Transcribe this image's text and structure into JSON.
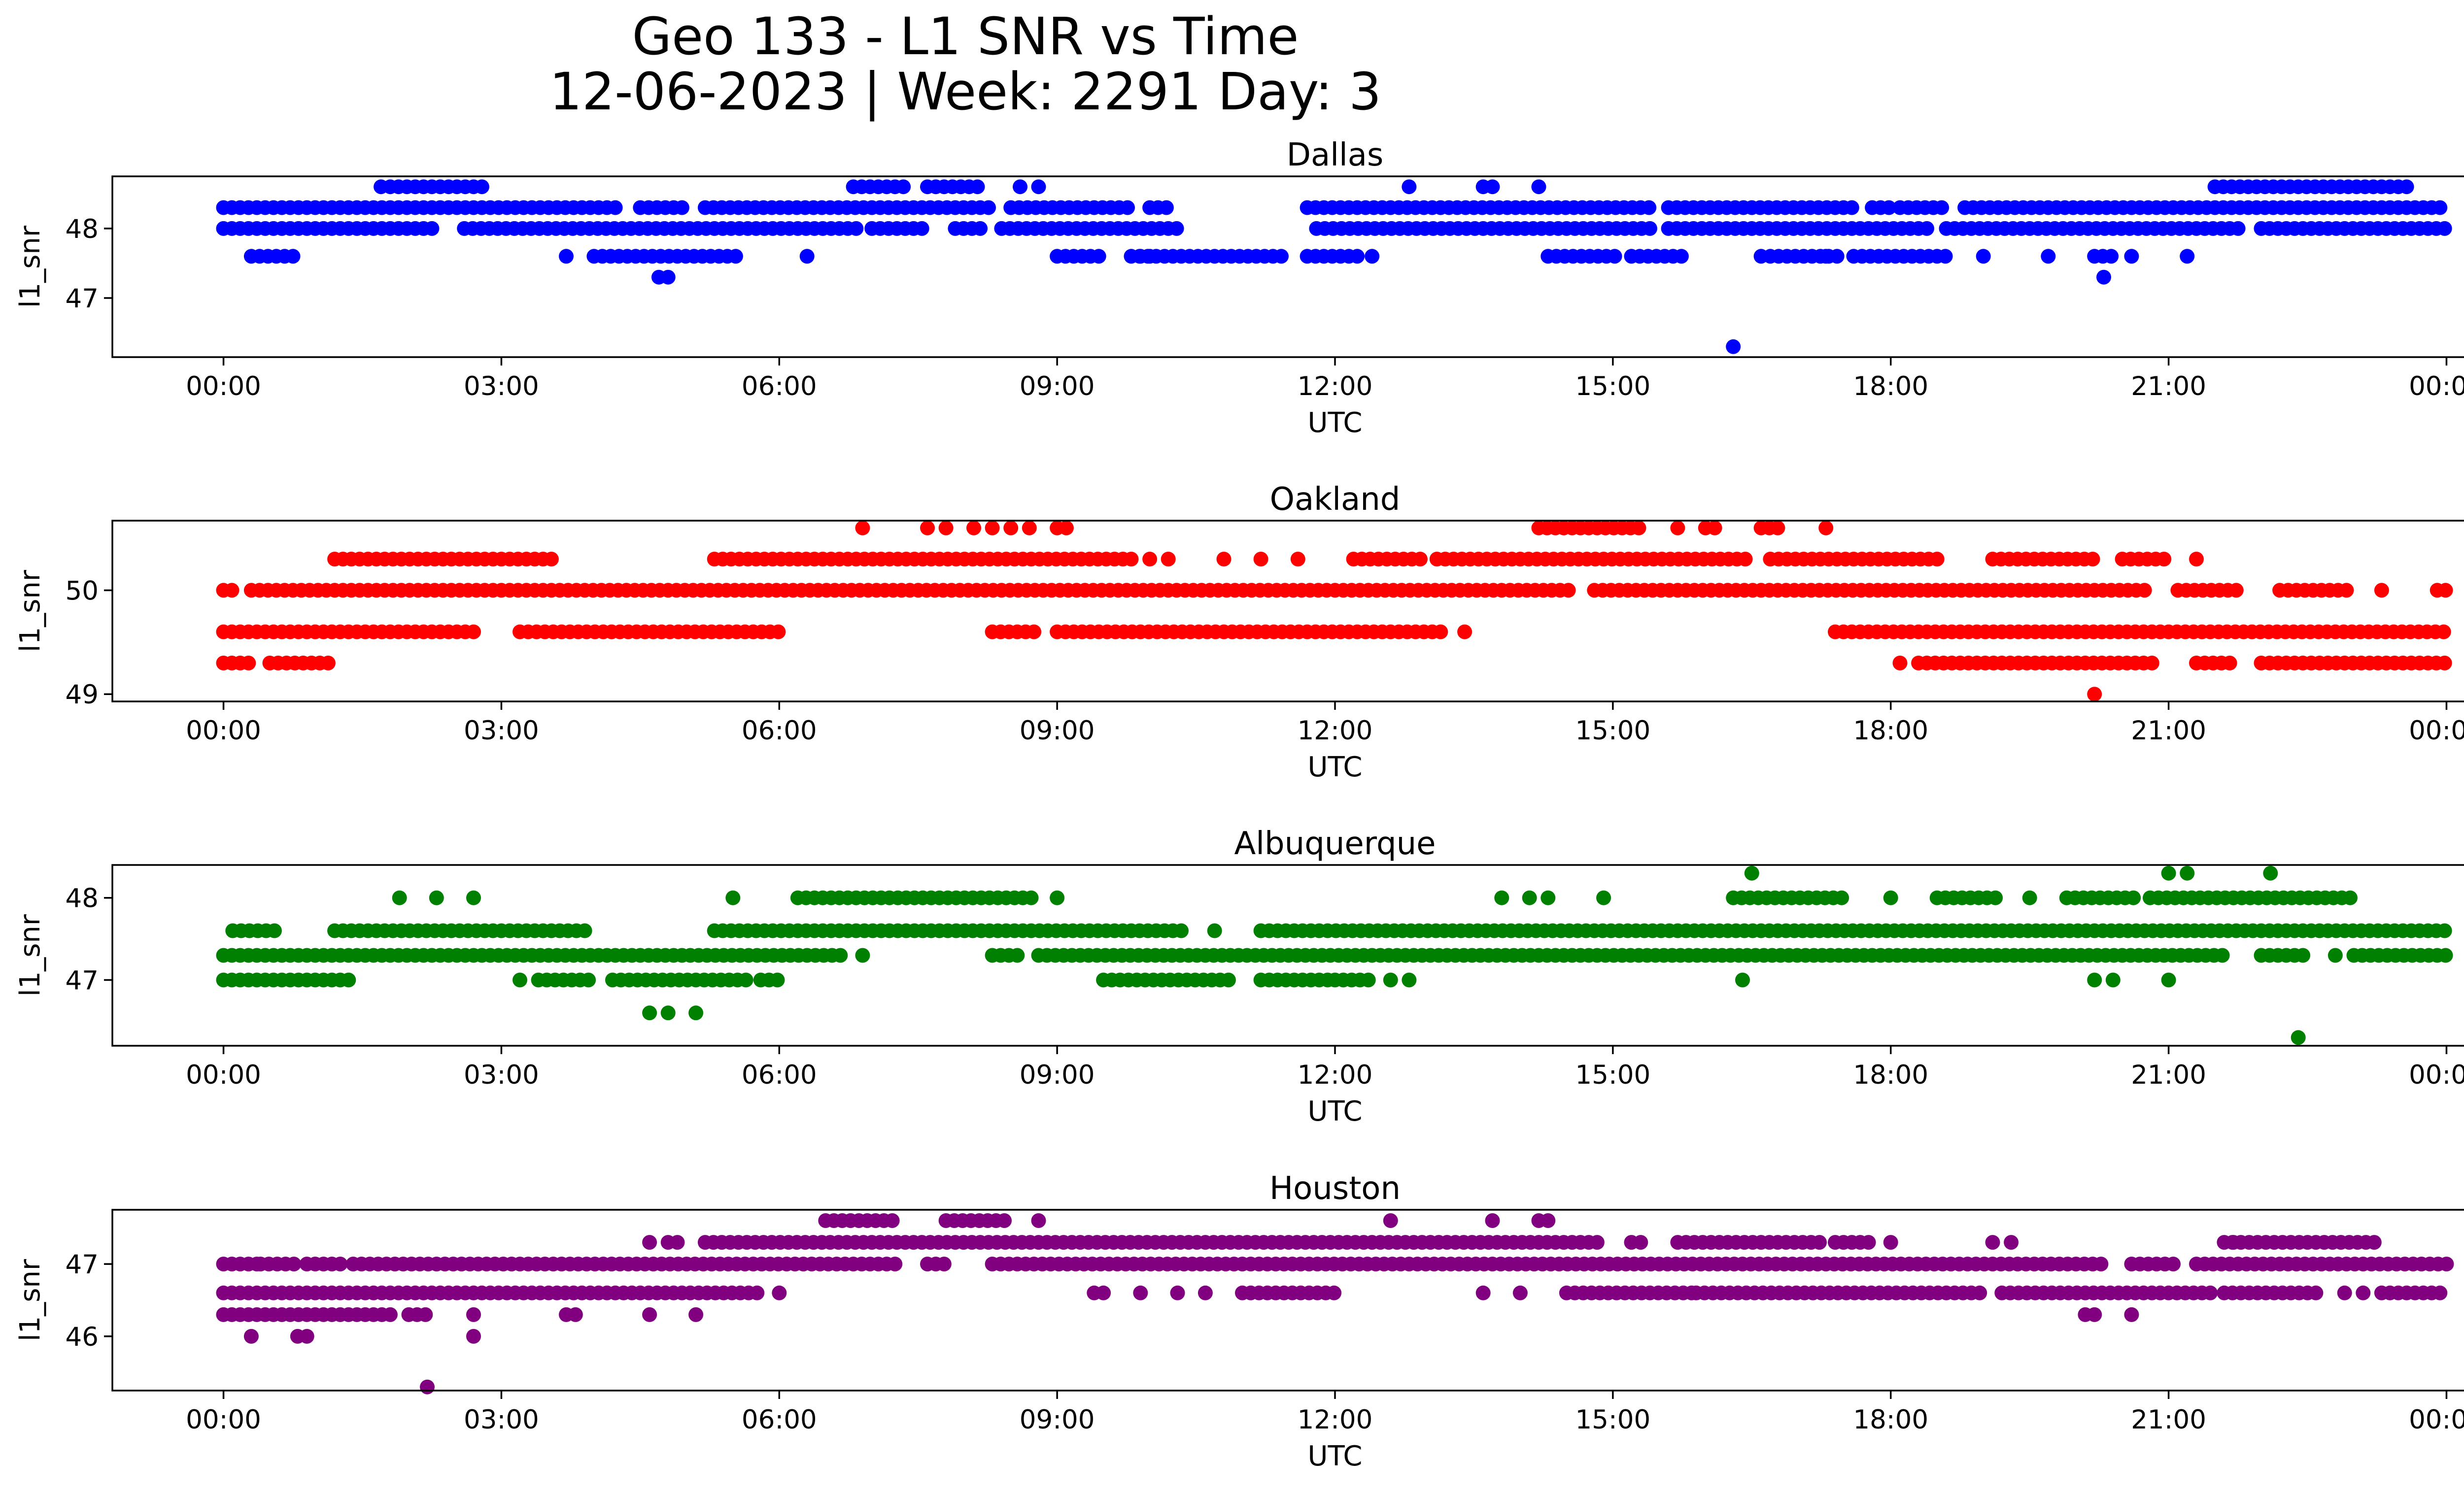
{
  "figure": {
    "title_line1": "Geo 133 - L1 SNR vs Time",
    "title_line2": "12-06-2023 | Week: 2291 Day: 3"
  },
  "chart_data": [
    {
      "type": "scatter",
      "title": "Dallas",
      "xlabel": "UTC",
      "ylabel": "l1_snr",
      "color": "#0000ff",
      "x_ticks": [
        "00:00",
        "03:00",
        "06:00",
        "09:00",
        "12:00",
        "15:00",
        "18:00",
        "21:00",
        "00:00"
      ],
      "xlim_hours": [
        -1.2,
        25.2
      ],
      "ylim": [
        46.15,
        48.75
      ],
      "y_ticks": [
        47,
        48
      ],
      "series": [
        {
          "y": 48.3,
          "ranges": [
            [
              0.0,
              4.3
            ],
            [
              4.5,
              5.0
            ],
            [
              5.2,
              8.3
            ],
            [
              8.5,
              9.8
            ],
            [
              10.0,
              10.2
            ],
            [
              11.7,
              15.4
            ],
            [
              15.6,
              17.6
            ],
            [
              17.8,
              18.0
            ],
            [
              18.1,
              18.6
            ],
            [
              18.8,
              24.0
            ]
          ]
        },
        {
          "y": 48.0,
          "ranges": [
            [
              0.0,
              2.3
            ],
            [
              2.6,
              6.9
            ],
            [
              7.0,
              7.6
            ],
            [
              7.9,
              8.2
            ],
            [
              8.4,
              10.3
            ],
            [
              11.8,
              15.4
            ],
            [
              15.6,
              18.4
            ],
            [
              18.6,
              21.8
            ],
            [
              22.0,
              24.0
            ]
          ]
        },
        {
          "y": 47.6,
          "ranges": [
            [
              0.3,
              0.8
            ],
            [
              4.0,
              5.6
            ],
            [
              9.0,
              9.5
            ],
            [
              9.8,
              11.5
            ],
            [
              11.7,
              12.3
            ],
            [
              14.3,
              15.1
            ],
            [
              15.2,
              15.8
            ],
            [
              16.7,
              17.5
            ],
            [
              17.6,
              18.6
            ],
            [
              20.2,
              20.4
            ]
          ]
        },
        {
          "y": 48.6,
          "ranges": [
            [
              1.8,
              2.8
            ],
            [
              6.8,
              7.4
            ],
            [
              7.6,
              8.2
            ],
            [
              21.5,
              23.6
            ]
          ]
        }
      ],
      "points": [
        [
          1.7,
          48.6
        ],
        [
          3.7,
          47.6
        ],
        [
          4.7,
          47.3
        ],
        [
          4.8,
          47.3
        ],
        [
          6.3,
          47.6
        ],
        [
          8.6,
          48.6
        ],
        [
          8.8,
          48.6
        ],
        [
          9.9,
          47.6
        ],
        [
          10.0,
          47.6
        ],
        [
          12.4,
          47.6
        ],
        [
          12.8,
          48.6
        ],
        [
          13.6,
          48.6
        ],
        [
          13.7,
          48.6
        ],
        [
          14.2,
          48.6
        ],
        [
          16.3,
          46.3
        ],
        [
          16.6,
          47.6
        ],
        [
          17.3,
          47.6
        ],
        [
          19.0,
          47.6
        ],
        [
          19.7,
          47.6
        ],
        [
          20.3,
          47.3
        ],
        [
          20.6,
          47.6
        ],
        [
          21.2,
          47.6
        ]
      ]
    },
    {
      "type": "scatter",
      "title": "Oakland",
      "xlabel": "UTC",
      "ylabel": "l1_snr",
      "color": "#ff0000",
      "x_ticks": [
        "00:00",
        "03:00",
        "06:00",
        "09:00",
        "12:00",
        "15:00",
        "18:00",
        "21:00",
        "00:00"
      ],
      "xlim_hours": [
        -1.2,
        25.2
      ],
      "ylim": [
        48.93,
        50.67
      ],
      "y_ticks": [
        49,
        50
      ],
      "series": [
        {
          "y": 50.0,
          "ranges": [
            [
              0.0,
              0.1
            ],
            [
              0.3,
              14.6
            ],
            [
              14.8,
              20.8
            ],
            [
              21.1,
              21.8
            ],
            [
              22.2,
              23.0
            ],
            [
              23.9,
              24.0
            ]
          ]
        },
        {
          "y": 49.6,
          "ranges": [
            [
              0.0,
              2.7
            ],
            [
              3.2,
              6.0
            ],
            [
              8.3,
              8.8
            ],
            [
              9.0,
              13.2
            ],
            [
              17.4,
              24.0
            ]
          ]
        },
        {
          "y": 49.3,
          "ranges": [
            [
              0.0,
              0.3
            ],
            [
              0.5,
              1.2
            ],
            [
              18.3,
              20.9
            ],
            [
              21.3,
              21.7
            ],
            [
              22.0,
              24.0
            ]
          ]
        },
        {
          "y": 50.3,
          "ranges": [
            [
              1.2,
              3.6
            ],
            [
              5.3,
              9.8
            ],
            [
              12.2,
              13.0
            ],
            [
              13.1,
              16.5
            ],
            [
              16.7,
              18.5
            ],
            [
              19.1,
              20.2
            ],
            [
              20.5,
              21.0
            ]
          ]
        },
        {
          "y": 50.6,
          "ranges": [
            [
              14.2,
              15.3
            ],
            [
              16.6,
              16.8
            ]
          ]
        }
      ],
      "points": [
        [
          6.9,
          50.6
        ],
        [
          7.6,
          50.6
        ],
        [
          7.8,
          50.6
        ],
        [
          8.1,
          50.6
        ],
        [
          8.3,
          50.6
        ],
        [
          8.5,
          50.6
        ],
        [
          8.7,
          50.6
        ],
        [
          9.0,
          50.6
        ],
        [
          9.1,
          50.6
        ],
        [
          10.0,
          50.3
        ],
        [
          10.2,
          50.3
        ],
        [
          10.8,
          50.3
        ],
        [
          11.2,
          50.3
        ],
        [
          11.6,
          50.3
        ],
        [
          13.4,
          49.6
        ],
        [
          15.7,
          50.6
        ],
        [
          16.0,
          50.6
        ],
        [
          16.1,
          50.6
        ],
        [
          17.3,
          50.6
        ],
        [
          18.1,
          49.3
        ],
        [
          20.2,
          49.0
        ],
        [
          21.3,
          50.3
        ],
        [
          23.3,
          50.0
        ]
      ]
    },
    {
      "type": "scatter",
      "title": "Albuquerque",
      "xlabel": "UTC",
      "ylabel": "l1_snr",
      "color": "#008000",
      "x_ticks": [
        "00:00",
        "03:00",
        "06:00",
        "09:00",
        "12:00",
        "15:00",
        "18:00",
        "21:00",
        "00:00"
      ],
      "xlim_hours": [
        -1.2,
        25.2
      ],
      "ylim": [
        46.2,
        48.4
      ],
      "y_ticks": [
        47,
        48
      ],
      "series": [
        {
          "y": 47.3,
          "ranges": [
            [
              0.0,
              6.7
            ],
            [
              8.3,
              8.6
            ],
            [
              8.8,
              21.6
            ],
            [
              22.0,
              22.5
            ],
            [
              23.0,
              24.0
            ]
          ]
        },
        {
          "y": 47.0,
          "ranges": [
            [
              0.0,
              1.4
            ],
            [
              3.4,
              4.0
            ],
            [
              4.2,
              5.7
            ],
            [
              5.8,
              6.0
            ],
            [
              9.5,
              10.9
            ],
            [
              11.2,
              12.0
            ],
            [
              12.0,
              12.4
            ]
          ]
        },
        {
          "y": 47.6,
          "ranges": [
            [
              0.1,
              0.6
            ],
            [
              1.2,
              3.9
            ],
            [
              5.3,
              10.4
            ],
            [
              11.2,
              24.0
            ]
          ]
        },
        {
          "y": 48.0,
          "ranges": [
            [
              6.2,
              8.8
            ],
            [
              16.3,
              17.5
            ],
            [
              18.5,
              19.2
            ],
            [
              19.9,
              20.7
            ],
            [
              20.8,
              23.0
            ]
          ]
        }
      ],
      "points": [
        [
          1.9,
          48.0
        ],
        [
          2.3,
          48.0
        ],
        [
          2.7,
          48.0
        ],
        [
          3.2,
          47.0
        ],
        [
          4.6,
          46.6
        ],
        [
          4.8,
          46.6
        ],
        [
          5.1,
          46.6
        ],
        [
          5.5,
          48.0
        ],
        [
          6.9,
          47.3
        ],
        [
          9.0,
          48.0
        ],
        [
          10.7,
          47.6
        ],
        [
          12.6,
          47.0
        ],
        [
          12.8,
          47.0
        ],
        [
          13.8,
          48.0
        ],
        [
          14.1,
          48.0
        ],
        [
          14.3,
          48.0
        ],
        [
          14.9,
          48.0
        ],
        [
          16.4,
          47.0
        ],
        [
          16.5,
          48.3
        ],
        [
          18.0,
          48.0
        ],
        [
          19.5,
          48.0
        ],
        [
          20.2,
          47.0
        ],
        [
          20.4,
          47.0
        ],
        [
          21.0,
          47.0
        ],
        [
          21.0,
          48.3
        ],
        [
          21.2,
          48.3
        ],
        [
          22.1,
          48.3
        ],
        [
          22.4,
          46.3
        ],
        [
          22.8,
          47.3
        ]
      ]
    },
    {
      "type": "scatter",
      "title": "Houston",
      "xlabel": "UTC",
      "ylabel": "l1_snr",
      "color": "#800080",
      "x_ticks": [
        "00:00",
        "03:00",
        "06:00",
        "09:00",
        "12:00",
        "15:00",
        "18:00",
        "21:00",
        "00:00"
      ],
      "xlim_hours": [
        -1.2,
        25.2
      ],
      "ylim": [
        45.25,
        47.75
      ],
      "y_ticks": [
        46,
        47
      ],
      "series": [
        {
          "y": 47.0,
          "ranges": [
            [
              0.0,
              0.4
            ],
            [
              0.4,
              0.8
            ],
            [
              0.9,
              1.3
            ],
            [
              1.4,
              7.3
            ],
            [
              7.6,
              7.8
            ],
            [
              8.3,
              20.3
            ],
            [
              20.6,
              21.1
            ],
            [
              21.3,
              24.0
            ]
          ]
        },
        {
          "y": 46.6,
          "ranges": [
            [
              0.0,
              5.8
            ],
            [
              11.0,
              12.0
            ],
            [
              14.5,
              15.9
            ],
            [
              15.9,
              19.0
            ],
            [
              19.2,
              21.5
            ],
            [
              21.6,
              22.6
            ],
            [
              23.3,
              24.0
            ]
          ]
        },
        {
          "y": 46.3,
          "ranges": [
            [
              0.0,
              1.8
            ],
            [
              2.0,
              2.2
            ]
          ]
        },
        {
          "y": 47.3,
          "ranges": [
            [
              5.2,
              14.9
            ],
            [
              15.7,
              17.3
            ],
            [
              17.4,
              17.8
            ],
            [
              21.6,
              23.3
            ]
          ]
        },
        {
          "y": 47.6,
          "ranges": [
            [
              6.5,
              7.3
            ],
            [
              7.8,
              8.5
            ]
          ]
        }
      ],
      "points": [
        [
          0.3,
          46.0
        ],
        [
          0.8,
          46.0
        ],
        [
          0.9,
          46.0
        ],
        [
          2.2,
          45.3
        ],
        [
          2.7,
          46.3
        ],
        [
          2.7,
          46.0
        ],
        [
          3.7,
          46.3
        ],
        [
          3.8,
          46.3
        ],
        [
          4.6,
          47.3
        ],
        [
          4.6,
          46.3
        ],
        [
          4.8,
          47.3
        ],
        [
          4.9,
          47.3
        ],
        [
          5.1,
          46.3
        ],
        [
          6.0,
          46.6
        ],
        [
          8.8,
          47.6
        ],
        [
          9.4,
          46.6
        ],
        [
          9.5,
          46.6
        ],
        [
          9.9,
          46.6
        ],
        [
          10.3,
          46.6
        ],
        [
          10.6,
          46.6
        ],
        [
          12.6,
          47.6
        ],
        [
          13.6,
          46.6
        ],
        [
          13.7,
          47.6
        ],
        [
          14.0,
          46.6
        ],
        [
          14.2,
          47.6
        ],
        [
          14.3,
          47.6
        ],
        [
          15.2,
          47.3
        ],
        [
          15.3,
          47.3
        ],
        [
          18.0,
          47.3
        ],
        [
          19.1,
          47.3
        ],
        [
          19.3,
          47.3
        ],
        [
          20.1,
          46.3
        ],
        [
          20.2,
          46.3
        ],
        [
          20.6,
          46.3
        ],
        [
          21.7,
          47.3
        ],
        [
          22.9,
          46.6
        ],
        [
          23.1,
          46.6
        ]
      ]
    }
  ]
}
